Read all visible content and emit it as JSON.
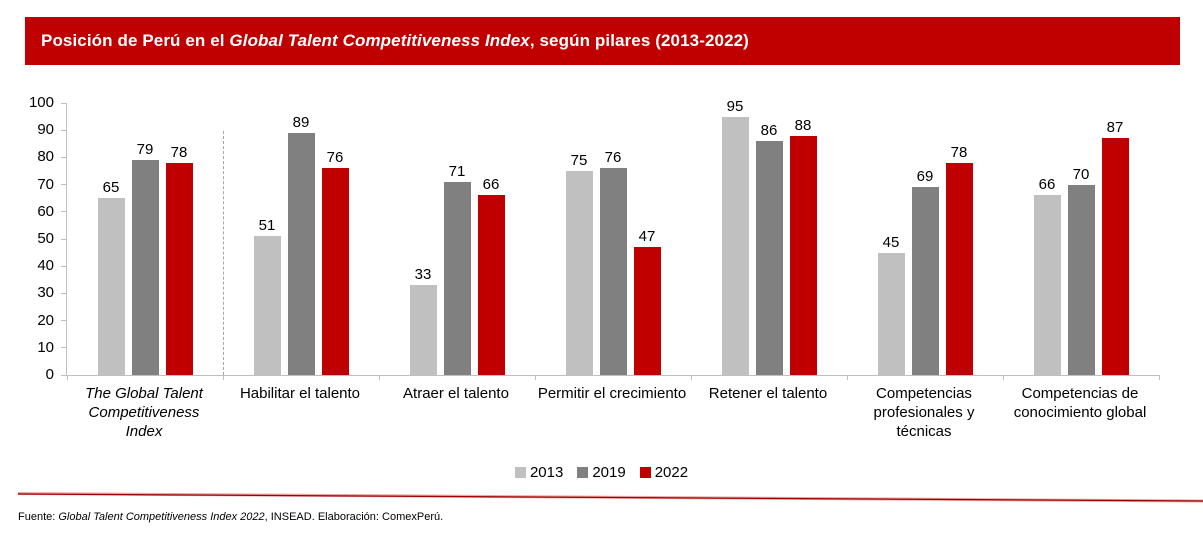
{
  "title": {
    "prefix": "Posición de Perú en el ",
    "italic": "Global Talent Competitiveness Index",
    "suffix": ", según pilares (2013-2022)",
    "bg_color": "#C00000",
    "text_color": "#FFFFFF"
  },
  "chart_data": {
    "type": "bar",
    "title": "Posición de Perú en el Global Talent Competitiveness Index, según pilares (2013-2022)",
    "categories": [
      "The Global Talent Competitiveness Index",
      "Habilitar el talento",
      "Atraer el talento",
      "Permitir el crecimiento",
      "Retener el talento",
      "Competencias profesionales y técnicas",
      "Competencias de conocimiento global"
    ],
    "italic_categories": [
      0
    ],
    "series": [
      {
        "name": "2013",
        "color": "#C0C0C0",
        "values": [
          65,
          51,
          33,
          75,
          95,
          45,
          66
        ]
      },
      {
        "name": "2019",
        "color": "#808080",
        "values": [
          79,
          89,
          71,
          76,
          86,
          69,
          70
        ]
      },
      {
        "name": "2022",
        "color": "#C00000",
        "values": [
          78,
          76,
          66,
          47,
          88,
          78,
          87
        ]
      }
    ],
    "xlabel": "",
    "ylabel": "",
    "ylim": [
      0,
      100
    ],
    "y_ticks": [
      0,
      10,
      20,
      30,
      40,
      50,
      60,
      70,
      80,
      90,
      100
    ],
    "grid": false,
    "legend_position": "bottom",
    "separator_after_category_index": 0,
    "axis_color": "#BFBFBF",
    "separator_color": "#A6A6A6"
  },
  "footer": {
    "prefix": "Fuente: ",
    "italic": "Global Talent Competitiveness Index 2022",
    "suffix": ", INSEAD. Elaboración: ComexPerú.",
    "line_color": "#C00000"
  }
}
